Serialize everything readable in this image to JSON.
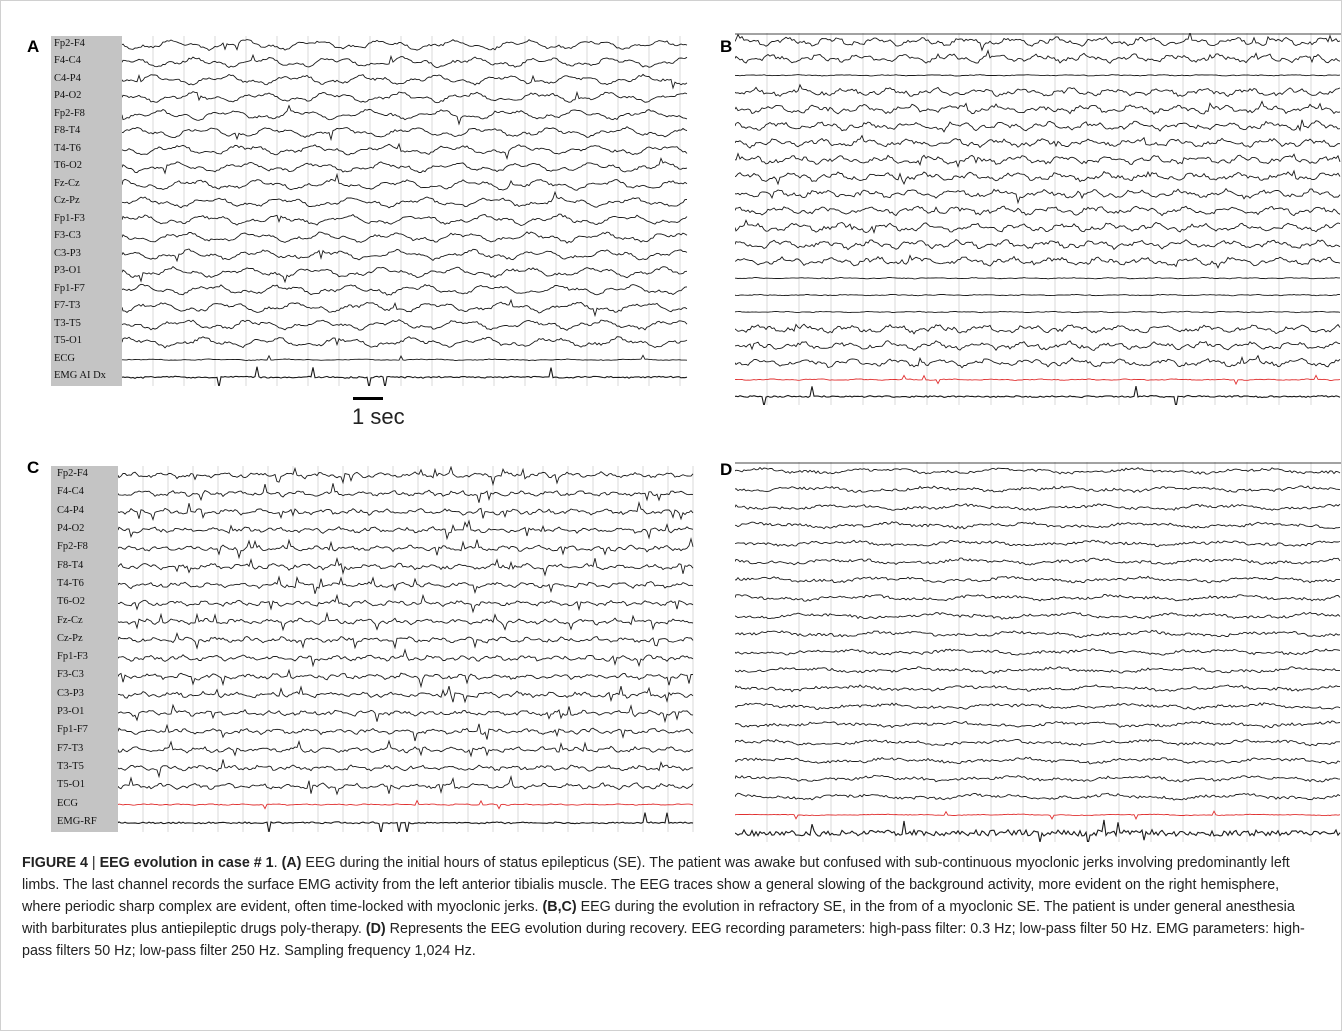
{
  "panels": {
    "A": {
      "letter": "A",
      "channels": [
        "Fp2-F4",
        "F4-C4",
        "C4-P4",
        "P4-O2",
        "Fp2-F8",
        "F8-T4",
        "T4-T6",
        "T6-O2",
        "Fz-Cz",
        "Cz-Pz",
        "Fp1-F3",
        "F3-C3",
        "C3-P3",
        "P3-O1",
        "Fp1-F7",
        "F7-T3",
        "T3-T5",
        "T5-O1",
        "ECG",
        "EMG AI Dx"
      ]
    },
    "B": {
      "letter": "B"
    },
    "C": {
      "letter": "C",
      "channels": [
        "Fp2-F4",
        "F4-C4",
        "C4-P4",
        "P4-O2",
        "Fp2-F8",
        "F8-T4",
        "T4-T6",
        "T6-O2",
        "Fz-Cz",
        "Cz-Pz",
        "Fp1-F3",
        "F3-C3",
        "C3-P3",
        "P3-O1",
        "Fp1-F7",
        "F7-T3",
        "T3-T5",
        "T5-O1",
        "ECG",
        "EMG-RF"
      ]
    },
    "D": {
      "letter": "D"
    }
  },
  "scale": {
    "label": "1 sec"
  },
  "colors": {
    "trace": "#1a1a1a",
    "ecg_red": "#e03030",
    "label_bg": "#c4c4c4",
    "grid": "#cfcfcf"
  },
  "caption": {
    "figure_label": "FIGURE 4",
    "separator": " | ",
    "title": "EEG evolution in case # 1",
    "after_title": ". ",
    "ref_a": "(A)",
    "text_a": " EEG during the initial hours of status epilepticus (SE). The patient was awake but confused with sub-continuous myoclonic jerks involving predominantly left limbs. The last channel records the surface EMG activity from the left anterior tibialis muscle. The EEG traces show a general slowing of the background activity, more evident on the right hemisphere, where periodic sharp complex are evident, often time-locked with myoclonic jerks. ",
    "ref_bc": "(B,C)",
    "text_bc": " EEG during the evolution in refractory SE, in the from of a myoclonic SE. The patient is under general anesthesia with barbiturates plus antiepileptic drugs poly-therapy. ",
    "ref_d": "(D)",
    "text_d": " Represents the EEG evolution during recovery. EEG recording parameters: high-pass filter: 0.3 Hz; low-pass filter 50 Hz. EMG parameters: high-pass filters 50 Hz; low-pass filter 250 Hz. Sampling frequency 1,024 Hz."
  }
}
